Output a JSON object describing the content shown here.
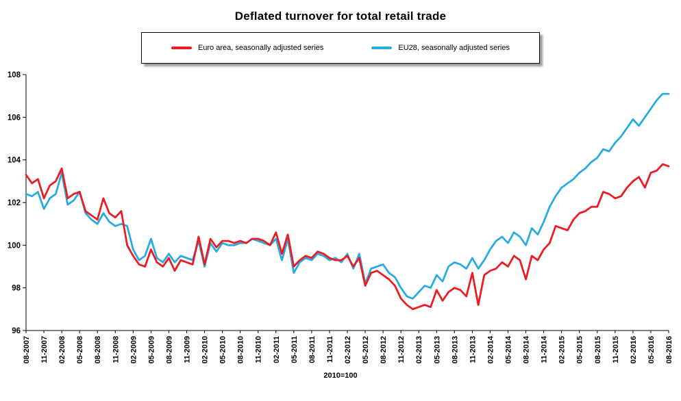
{
  "title": "Deflated turnover for total retail trade",
  "footnote": "2010=100",
  "legend": {
    "items": [
      {
        "label": "Euro area, seasonally adjusted series",
        "color": "#ed1c24"
      },
      {
        "label": "EU28, seasonally adjusted series",
        "color": "#29abe2"
      }
    ]
  },
  "chart_data": {
    "type": "line",
    "title": "Deflated turnover for total retail trade",
    "xlabel": "",
    "ylabel": "",
    "note": "2010=100",
    "ylim": [
      96,
      108
    ],
    "yticks": [
      96,
      98,
      100,
      102,
      104,
      106,
      108
    ],
    "grid": false,
    "legend_position": "top",
    "x_tick_every": 3,
    "x": [
      "08-2007",
      "09-2007",
      "10-2007",
      "11-2007",
      "12-2007",
      "01-2008",
      "02-2008",
      "03-2008",
      "04-2008",
      "05-2008",
      "06-2008",
      "07-2008",
      "08-2008",
      "09-2008",
      "10-2008",
      "11-2008",
      "12-2008",
      "01-2009",
      "02-2009",
      "03-2009",
      "04-2009",
      "05-2009",
      "06-2009",
      "07-2009",
      "08-2009",
      "09-2009",
      "10-2009",
      "11-2009",
      "12-2009",
      "01-2010",
      "02-2010",
      "03-2010",
      "04-2010",
      "05-2010",
      "06-2010",
      "07-2010",
      "08-2010",
      "09-2010",
      "10-2010",
      "11-2010",
      "12-2010",
      "01-2011",
      "02-2011",
      "03-2011",
      "04-2011",
      "05-2011",
      "06-2011",
      "07-2011",
      "08-2011",
      "09-2011",
      "10-2011",
      "11-2011",
      "12-2011",
      "01-2012",
      "02-2012",
      "03-2012",
      "04-2012",
      "05-2012",
      "06-2012",
      "07-2012",
      "08-2012",
      "09-2012",
      "10-2012",
      "11-2012",
      "12-2012",
      "01-2013",
      "02-2013",
      "03-2013",
      "04-2013",
      "05-2013",
      "06-2013",
      "07-2013",
      "08-2013",
      "09-2013",
      "10-2013",
      "11-2013",
      "12-2013",
      "01-2014",
      "02-2014",
      "03-2014",
      "04-2014",
      "05-2014",
      "06-2014",
      "07-2014",
      "08-2014",
      "09-2014",
      "10-2014",
      "11-2014",
      "12-2014",
      "01-2015",
      "02-2015",
      "03-2015",
      "04-2015",
      "05-2015",
      "06-2015",
      "07-2015",
      "08-2015",
      "09-2015",
      "10-2015",
      "11-2015",
      "12-2015",
      "01-2016",
      "02-2016",
      "03-2016",
      "04-2016",
      "05-2016",
      "06-2016",
      "07-2016",
      "08-2016"
    ],
    "series": [
      {
        "name": "Euro area, seasonally adjusted series",
        "color": "#ed1c24",
        "values": [
          103.3,
          102.9,
          103.1,
          102.2,
          102.8,
          103.0,
          103.6,
          102.2,
          102.4,
          102.5,
          101.6,
          101.4,
          101.2,
          102.2,
          101.5,
          101.3,
          101.6,
          100.0,
          99.5,
          99.1,
          99.0,
          99.8,
          99.2,
          99.0,
          99.4,
          98.8,
          99.3,
          99.2,
          99.1,
          100.4,
          99.1,
          100.3,
          99.9,
          100.2,
          100.2,
          100.1,
          100.2,
          100.1,
          100.3,
          100.3,
          100.2,
          100.0,
          100.6,
          99.6,
          100.5,
          99.0,
          99.3,
          99.5,
          99.4,
          99.7,
          99.6,
          99.4,
          99.3,
          99.3,
          99.5,
          99.0,
          99.4,
          98.1,
          98.7,
          98.8,
          98.6,
          98.4,
          98.1,
          97.5,
          97.2,
          97.0,
          97.1,
          97.2,
          97.1,
          97.9,
          97.4,
          97.8,
          98.0,
          97.9,
          97.6,
          98.7,
          97.2,
          98.6,
          98.8,
          98.9,
          99.2,
          99.0,
          99.5,
          99.3,
          98.4,
          99.5,
          99.3,
          99.8,
          100.1,
          100.9,
          100.8,
          100.7,
          101.2,
          101.5,
          101.6,
          101.8,
          101.8,
          102.5,
          102.4,
          102.2,
          102.3,
          102.7,
          103.0,
          103.2,
          102.7,
          103.4,
          103.5,
          103.8,
          103.7
        ]
      },
      {
        "name": "EU28, seasonally adjusted series",
        "color": "#29abe2",
        "values": [
          102.4,
          102.3,
          102.5,
          101.7,
          102.2,
          102.4,
          103.4,
          101.9,
          102.1,
          102.5,
          101.5,
          101.2,
          101.0,
          101.5,
          101.1,
          100.9,
          101.0,
          100.9,
          99.8,
          99.3,
          99.5,
          100.3,
          99.4,
          99.2,
          99.6,
          99.2,
          99.5,
          99.4,
          99.3,
          100.2,
          99.0,
          100.1,
          99.7,
          100.1,
          100.0,
          100.0,
          100.1,
          100.1,
          100.3,
          100.2,
          100.1,
          100.0,
          100.3,
          99.3,
          100.3,
          98.7,
          99.2,
          99.4,
          99.3,
          99.6,
          99.5,
          99.3,
          99.4,
          99.2,
          99.6,
          98.9,
          99.6,
          98.2,
          98.9,
          99.0,
          99.1,
          98.7,
          98.5,
          98.0,
          97.6,
          97.5,
          97.8,
          98.1,
          98.0,
          98.6,
          98.3,
          99.0,
          99.2,
          99.1,
          98.9,
          99.4,
          98.9,
          99.3,
          99.8,
          100.2,
          100.4,
          100.1,
          100.6,
          100.4,
          100.0,
          100.8,
          100.5,
          101.1,
          101.8,
          102.3,
          102.7,
          102.9,
          103.1,
          103.4,
          103.6,
          103.9,
          104.1,
          104.5,
          104.4,
          104.8,
          105.1,
          105.5,
          105.9,
          105.6,
          106.0,
          106.4,
          106.8,
          107.1,
          107.1
        ]
      }
    ]
  }
}
